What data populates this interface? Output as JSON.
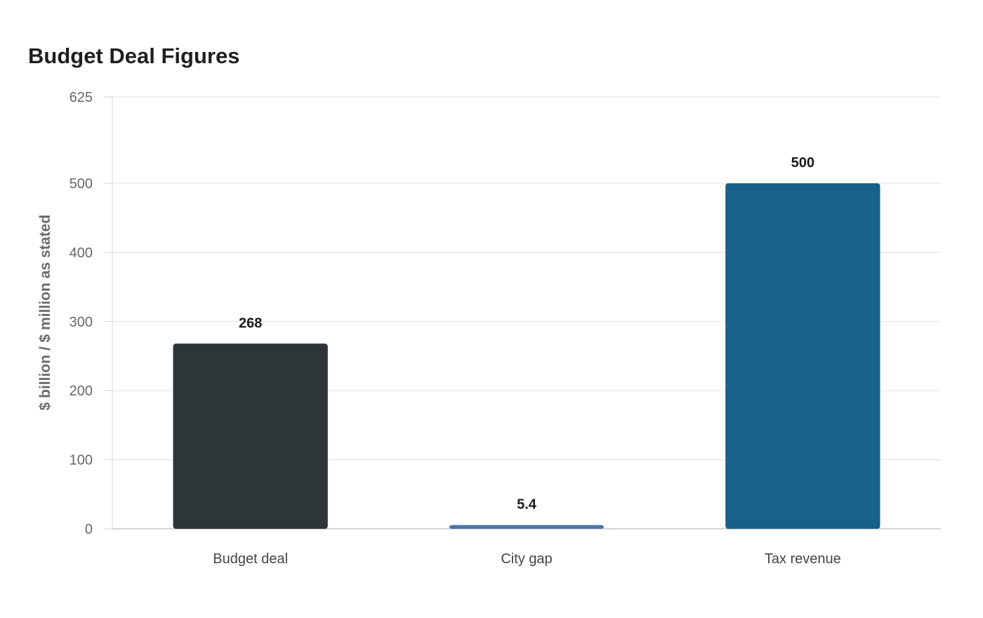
{
  "chart_data": {
    "type": "bar",
    "title": "Budget Deal Figures",
    "xlabel": "",
    "ylabel": "$ billion / $ million as stated",
    "categories": [
      "Budget deal",
      "City gap",
      "Tax revenue"
    ],
    "values": [
      268,
      5.4,
      500
    ],
    "value_labels": [
      "268",
      "5.4",
      "500"
    ],
    "colors": [
      "#2e3538",
      "#4a77a8",
      "#186189"
    ],
    "ylim": [
      0,
      625
    ],
    "yticks": [
      0,
      100,
      200,
      300,
      400,
      500,
      625
    ],
    "grid": true,
    "legend": "none"
  }
}
